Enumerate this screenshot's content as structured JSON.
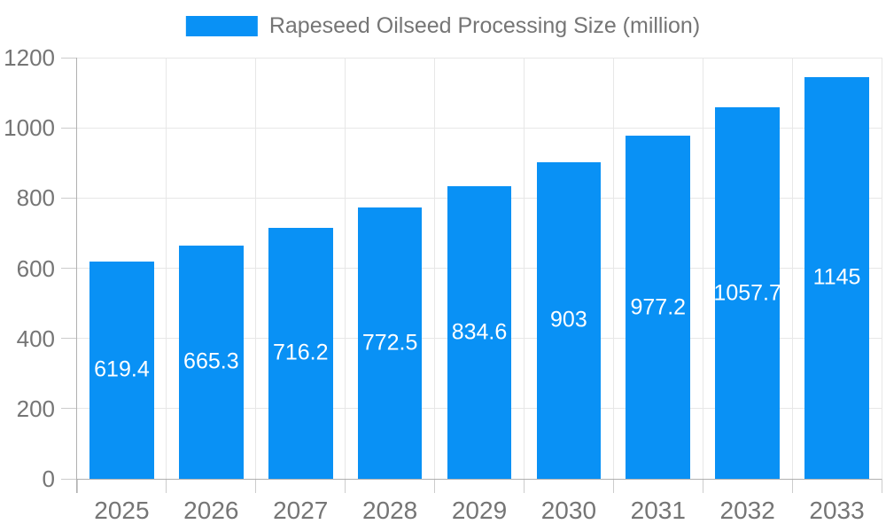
{
  "chart_data": {
    "type": "bar",
    "categories": [
      "2025",
      "2026",
      "2027",
      "2028",
      "2029",
      "2030",
      "2031",
      "2032",
      "2033"
    ],
    "series": [
      {
        "name": "Rapeseed Oilseed Processing Size (million)",
        "values": [
          619.4,
          665.3,
          716.2,
          772.5,
          834.6,
          903,
          977.2,
          1057.7,
          1145
        ],
        "value_labels": [
          "619.4",
          "665.3",
          "716.2",
          "772.5",
          "834.6",
          "903",
          "977.2",
          "1057.7",
          "1145"
        ],
        "color": "#0991f5"
      }
    ],
    "title": "Rapeseed Oilseed Processing Size (million)",
    "xlabel": "",
    "ylabel": "",
    "ylim": [
      0,
      1200
    ],
    "yticks": [
      0,
      200,
      400,
      600,
      800,
      1000,
      1200
    ],
    "grid": true,
    "legend_position": "top",
    "value_label_position": "inside-center",
    "colors": {
      "bar": "#0991f5",
      "bar_label": "#ffffff",
      "axis_text": "#757575",
      "axis_line": "#b0b0b0",
      "tick_line": "#cccccc",
      "grid_line": "#e7e7e7",
      "background": "#ffffff"
    }
  }
}
